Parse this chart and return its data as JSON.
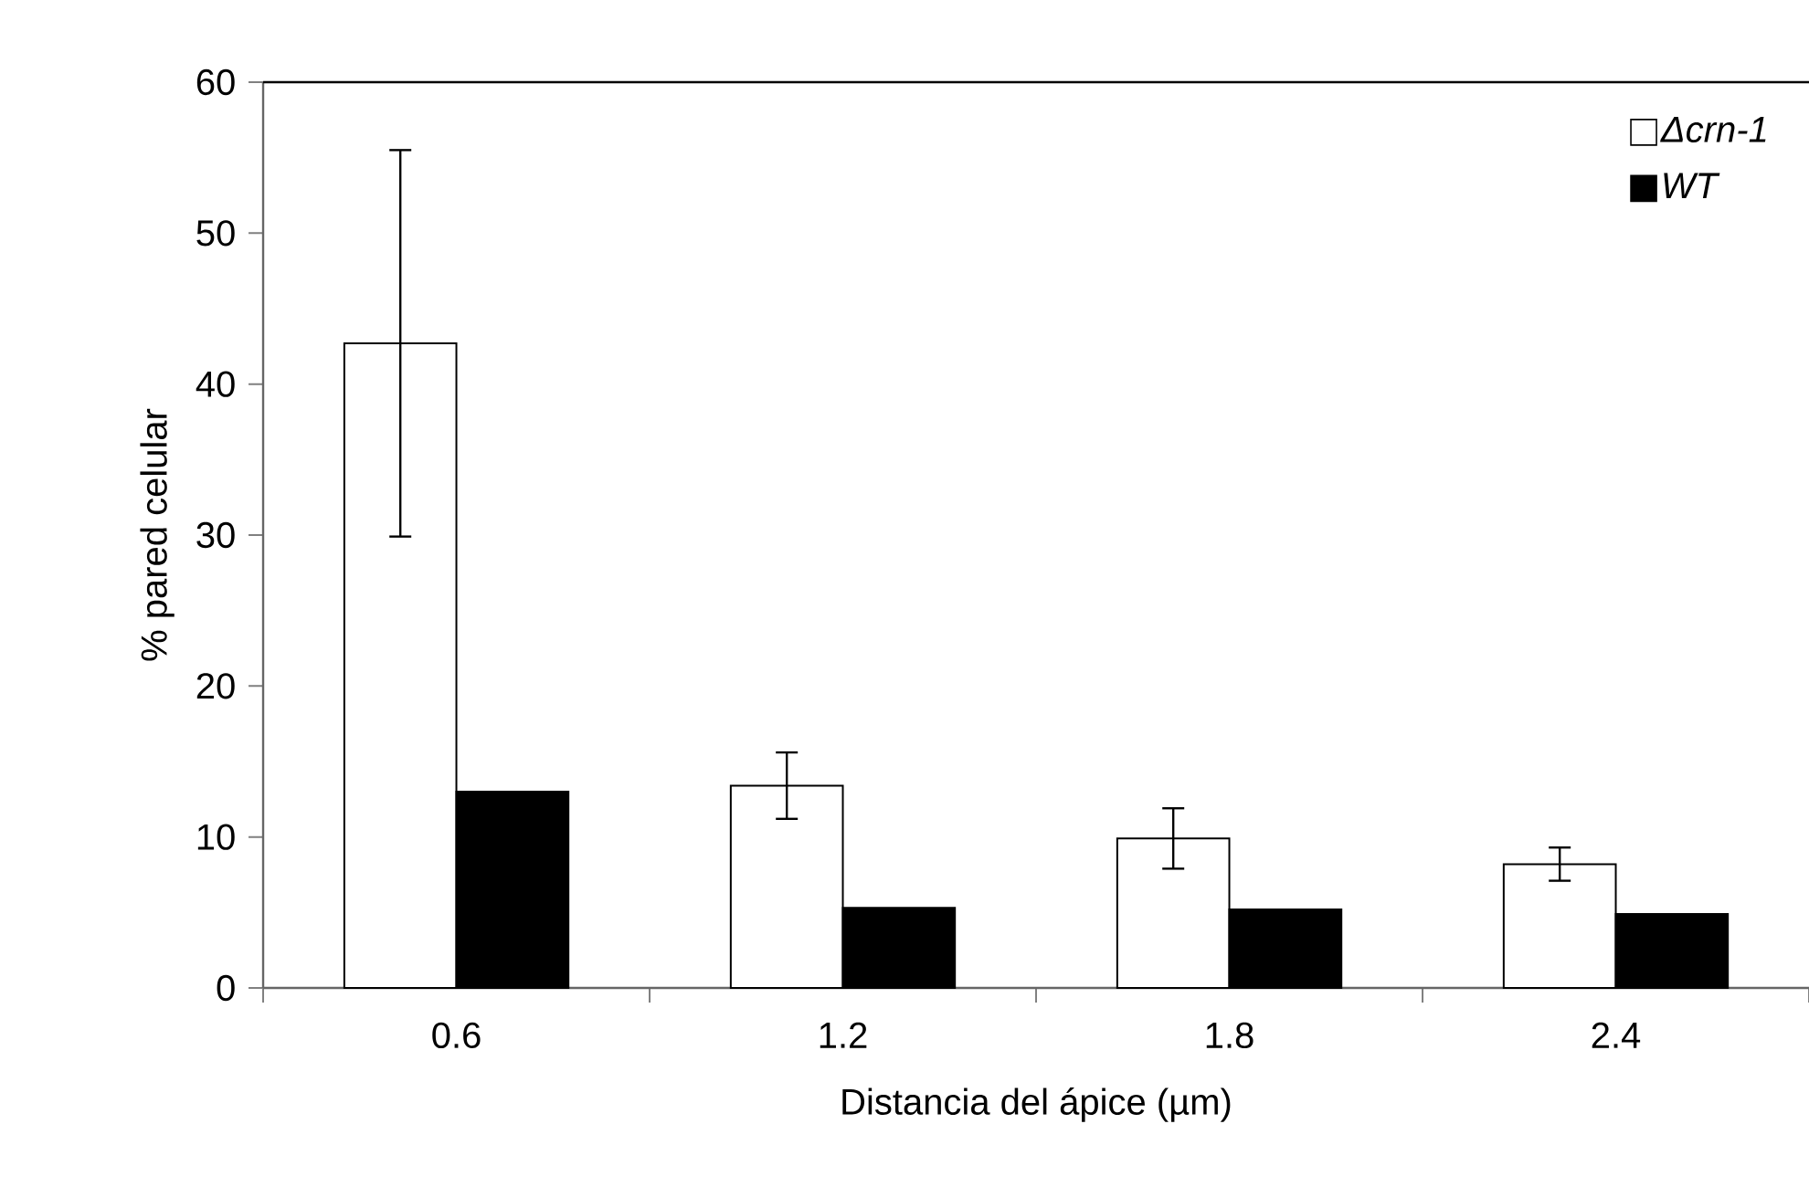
{
  "chart_data": {
    "type": "bar",
    "xlabel": "Distancia del ápice (µm)",
    "ylabel": "% pared celular",
    "categories": [
      "0.6",
      "1.2",
      "1.8",
      "2.4"
    ],
    "series": [
      {
        "name": "Δcrn-1",
        "color": "#ffffff",
        "values": [
          42.7,
          13.4,
          9.9,
          8.2
        ],
        "errors": [
          12.8,
          2.2,
          2.0,
          1.1
        ]
      },
      {
        "name": "WT",
        "color": "#000000",
        "values": [
          13.0,
          5.3,
          5.2,
          4.9
        ]
      }
    ],
    "ylim": [
      0,
      60
    ],
    "yticks": [
      0,
      10,
      20,
      30,
      40,
      50,
      60
    ],
    "legend": "top right"
  }
}
